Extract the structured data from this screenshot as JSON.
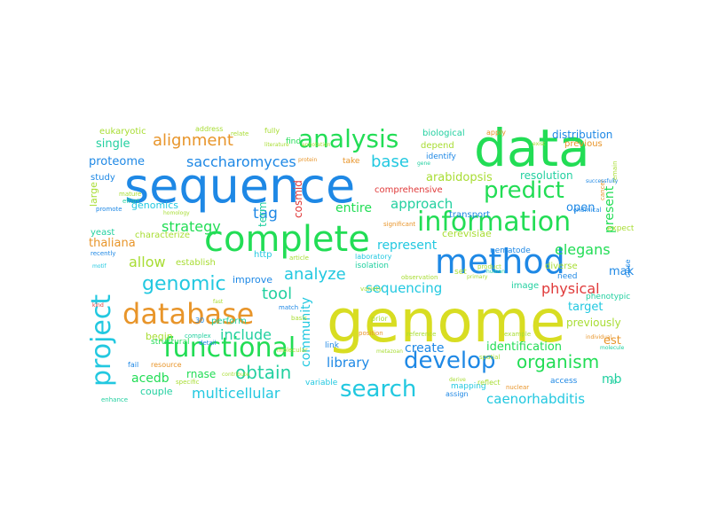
{
  "colors": {
    "blue": "#1e88e5",
    "green": "#22dd55",
    "yellow": "#d8dd22",
    "cyan": "#22c8e0",
    "orange": "#e8952a",
    "red": "#e03a3a",
    "teal": "#22d0a0",
    "lime": "#a8dd33"
  },
  "words": [
    "genome",
    "sequence",
    "data",
    "complete",
    "method",
    "information",
    "database",
    "functional",
    "analysis",
    "predict",
    "project",
    "develop",
    "search",
    "organism",
    "genomic",
    "alignment",
    "saccharomyces",
    "base",
    "arabidopsis",
    "approach",
    "strategy",
    "tag",
    "proteome",
    "tool",
    "analyze",
    "entire",
    "sequencing",
    "allow",
    "represent",
    "elegans",
    "physical",
    "include",
    "obtain",
    "multicellular",
    "library",
    "community",
    "identification",
    "create",
    "acedb",
    "rnase",
    "caenorhabditis",
    "target",
    "previously",
    "est",
    "make",
    "open",
    "present",
    "resolution",
    "distribution",
    "single",
    "thaliana",
    "genomics",
    "cerevisiae",
    "improve",
    "couple",
    "begin",
    "mb",
    "cosmid",
    "term",
    "large",
    "eukaryotic",
    "biological",
    "depend",
    "previous",
    "identify",
    "comprehensive",
    "transport",
    "yeast",
    "study",
    "establish",
    "characterize",
    "perform",
    "http",
    "link",
    "image",
    "nematode",
    "isolation",
    "diverse",
    "need",
    "expect",
    "variable",
    "mapping",
    "access",
    "assign",
    "reflect",
    "phenotypic",
    "address",
    "fully",
    "find",
    "take",
    "apply",
    "structural",
    "mature",
    "effort",
    "promote",
    "laboratory",
    "significant",
    "chemical",
    "close",
    "article",
    "observation",
    "variety",
    "match",
    "basis",
    "prior",
    "position",
    "reference",
    "example",
    "fail",
    "resource",
    "enhance",
    "specific",
    "complex",
    "detail",
    "nuclear",
    "individual",
    "molecule",
    "product",
    "spatial",
    "molecular",
    "set",
    "primary",
    "human",
    "literature",
    "annotation",
    "remain",
    "cancer",
    "recently",
    "motif",
    "derive",
    "successfully",
    "homology",
    "relate",
    "contribute",
    "fast",
    "kind",
    "30",
    "10",
    "metazoan",
    "exist",
    "gene",
    "protein"
  ]
}
